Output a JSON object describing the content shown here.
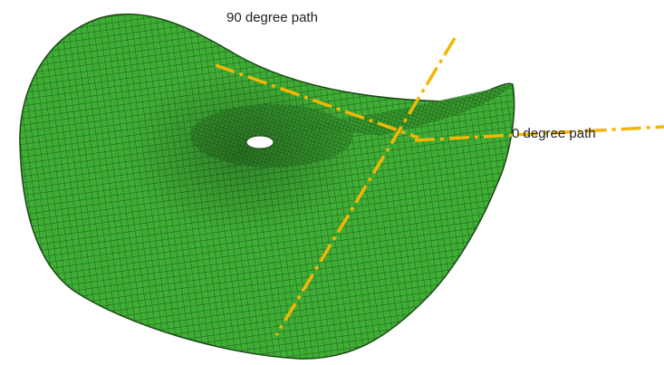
{
  "labels": {
    "path_90": "90 degree path",
    "path_0": "0 degree path"
  }
}
